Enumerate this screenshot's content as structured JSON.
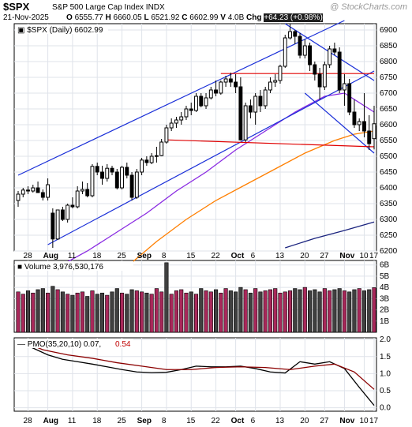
{
  "header": {
    "symbol": "$SPX",
    "name": "S&P 500 Large Cap Index  INDX",
    "brand": "@ StockCharts.com",
    "date": "21-Nov-2025",
    "ohlc": {
      "O": "6555.77",
      "H": "6660.05",
      "L": "6521.92",
      "C": "6602.99",
      "V": "4.0B",
      "Chg": "+64.23 (+0.98%)"
    }
  },
  "colors": {
    "up_candle": "#ffffff",
    "down_candle": "#000000",
    "channel_line": "#1a2fd8",
    "resistance_line": "#e00000",
    "ma_purple": "#8a2be2",
    "ma_orange": "#ff7f00",
    "ma_navy": "#1a237e",
    "vol_up": "#a8285a",
    "vol_down": "#404040",
    "pmo_line": "#000000",
    "pmo_signal": "#8b0000"
  },
  "chart_data": [
    {
      "type": "candlestick",
      "title": "$SPX (Daily) 6602.99",
      "x_ticks": [
        "28",
        "Aug",
        "11",
        "18",
        "25",
        "Sep",
        "8",
        "15",
        "22",
        "Oct",
        "6",
        "13",
        "20",
        "27",
        "Nov",
        "10",
        "17"
      ],
      "ylim": [
        6200,
        6920
      ],
      "y_ticks": [
        6200,
        6250,
        6300,
        6350,
        6400,
        6450,
        6500,
        6550,
        6600,
        6650,
        6700,
        6750,
        6800,
        6850,
        6900
      ],
      "candles": [
        [
          6360,
          6390,
          6340,
          6380
        ],
        [
          6380,
          6400,
          6370,
          6393
        ],
        [
          6393,
          6405,
          6380,
          6390
        ],
        [
          6390,
          6410,
          6385,
          6400
        ],
        [
          6400,
          6420,
          6390,
          6385
        ],
        [
          6385,
          6395,
          6360,
          6370
        ],
        [
          6370,
          6430,
          6360,
          6410
        ],
        [
          6320,
          6335,
          6210,
          6238
        ],
        [
          6238,
          6330,
          6235,
          6330
        ],
        [
          6330,
          6340,
          6295,
          6300
        ],
        [
          6300,
          6350,
          6290,
          6345
        ],
        [
          6345,
          6370,
          6335,
          6340
        ],
        [
          6340,
          6405,
          6335,
          6390
        ],
        [
          6390,
          6420,
          6380,
          6395
        ],
        [
          6395,
          6415,
          6370,
          6375
        ],
        [
          6375,
          6475,
          6370,
          6468
        ],
        [
          6468,
          6480,
          6440,
          6450
        ],
        [
          6450,
          6470,
          6410,
          6430
        ],
        [
          6430,
          6475,
          6420,
          6462
        ],
        [
          6462,
          6470,
          6440,
          6450
        ],
        [
          6450,
          6460,
          6395,
          6400
        ],
        [
          6400,
          6470,
          6395,
          6465
        ],
        [
          6465,
          6480,
          6430,
          6440
        ],
        [
          6440,
          6450,
          6360,
          6370
        ],
        [
          6370,
          6460,
          6365,
          6450
        ],
        [
          6450,
          6495,
          6440,
          6488
        ],
        [
          6488,
          6500,
          6470,
          6480
        ],
        [
          6480,
          6510,
          6475,
          6500
        ],
        [
          6500,
          6530,
          6480,
          6502
        ],
        [
          6502,
          6555,
          6500,
          6545
        ],
        [
          6545,
          6600,
          6540,
          6590
        ],
        [
          6590,
          6620,
          6580,
          6605
        ],
        [
          6605,
          6625,
          6590,
          6615
        ],
        [
          6615,
          6640,
          6600,
          6625
        ],
        [
          6625,
          6660,
          6615,
          6650
        ],
        [
          6650,
          6670,
          6630,
          6645
        ],
        [
          6645,
          6700,
          6640,
          6690
        ],
        [
          6690,
          6700,
          6655,
          6660
        ],
        [
          6660,
          6700,
          6650,
          6685
        ],
        [
          6685,
          6720,
          6680,
          6710
        ],
        [
          6710,
          6740,
          6690,
          6700
        ],
        [
          6700,
          6740,
          6695,
          6735
        ],
        [
          6735,
          6755,
          6720,
          6745
        ],
        [
          6745,
          6765,
          6720,
          6735
        ],
        [
          6735,
          6760,
          6700,
          6720
        ],
        [
          6720,
          6750,
          6550,
          6552
        ],
        [
          6552,
          6670,
          6545,
          6660
        ],
        [
          6660,
          6680,
          6620,
          6640
        ],
        [
          6640,
          6700,
          6600,
          6690
        ],
        [
          6690,
          6710,
          6640,
          6660
        ],
        [
          6660,
          6720,
          6650,
          6710
        ],
        [
          6710,
          6750,
          6700,
          6735
        ],
        [
          6735,
          6760,
          6720,
          6740
        ],
        [
          6740,
          6790,
          6730,
          6785
        ],
        [
          6785,
          6885,
          6780,
          6875
        ],
        [
          6875,
          6920,
          6870,
          6895
        ],
        [
          6895,
          6900,
          6855,
          6880
        ],
        [
          6880,
          6890,
          6810,
          6820
        ],
        [
          6820,
          6870,
          6810,
          6850
        ],
        [
          6850,
          6860,
          6770,
          6790
        ],
        [
          6790,
          6800,
          6740,
          6760
        ],
        [
          6760,
          6780,
          6680,
          6720
        ],
        [
          6720,
          6800,
          6710,
          6790
        ],
        [
          6790,
          6850,
          6780,
          6840
        ],
        [
          6840,
          6860,
          6820,
          6830
        ],
        [
          6830,
          6845,
          6700,
          6710
        ],
        [
          6710,
          6760,
          6660,
          6730
        ],
        [
          6730,
          6745,
          6630,
          6640
        ],
        [
          6640,
          6680,
          6590,
          6600
        ],
        [
          6600,
          6620,
          6580,
          6610
        ],
        [
          6610,
          6700,
          6560,
          6580
        ],
        [
          6580,
          6630,
          6520,
          6540
        ],
        [
          6555.77,
          6660.05,
          6521.92,
          6602.99
        ]
      ],
      "channels": [
        {
          "name": "upper-channel",
          "color": "#1a2fd8",
          "points": [
            [
              0,
              6440
            ],
            [
              66,
              6930
            ]
          ]
        },
        {
          "name": "lower-channel",
          "color": "#1a2fd8",
          "points": [
            [
              6,
              6220
            ],
            [
              72,
              6770
            ]
          ]
        },
        {
          "name": "down-channel-top",
          "color": "#1a2fd8",
          "points": [
            [
              54,
              6920
            ],
            [
              72,
              6740
            ]
          ]
        },
        {
          "name": "down-channel-bottom",
          "color": "#1a2fd8",
          "points": [
            [
              58,
              6700
            ],
            [
              72,
              6510
            ]
          ]
        },
        {
          "name": "resistance-top",
          "color": "#e00000",
          "points": [
            [
              41,
              6762
            ],
            [
              72,
              6762
            ]
          ]
        },
        {
          "name": "support-bottom",
          "color": "#e00000",
          "points": [
            [
              30,
              6552
            ],
            [
              72,
              6530
            ]
          ]
        }
      ],
      "ma_series": [
        {
          "name": "ma-purple",
          "color": "#8a2be2",
          "values": [
            [
              7,
              6140
            ],
            [
              14,
              6200
            ],
            [
              20,
              6260
            ],
            [
              26,
              6320
            ],
            [
              32,
              6390
            ],
            [
              38,
              6450
            ],
            [
              44,
              6520
            ],
            [
              50,
              6580
            ],
            [
              56,
              6640
            ],
            [
              62,
              6690
            ],
            [
              66,
              6700
            ],
            [
              70,
              6660
            ],
            [
              72,
              6640
            ]
          ]
        },
        {
          "name": "ma-orange",
          "color": "#ff7f00",
          "values": [
            [
              22,
              6150
            ],
            [
              28,
              6230
            ],
            [
              34,
              6300
            ],
            [
              40,
              6360
            ],
            [
              46,
              6410
            ],
            [
              52,
              6460
            ],
            [
              58,
              6510
            ],
            [
              64,
              6550
            ],
            [
              68,
              6570
            ],
            [
              72,
              6580
            ]
          ]
        },
        {
          "name": "ma-navy",
          "color": "#1a237e",
          "values": [
            [
              54,
              6210
            ],
            [
              60,
              6240
            ],
            [
              66,
              6265
            ],
            [
              72,
              6292
            ]
          ]
        }
      ]
    },
    {
      "type": "bar",
      "title": "Volume 3,976,530,176",
      "ylim": [
        0,
        6.4
      ],
      "y_tick_labels": [
        "1B",
        "2B",
        "3B",
        "4B",
        "5B",
        "6B"
      ],
      "y_tick_values": [
        1,
        2,
        3,
        4,
        5,
        6
      ],
      "values": [
        3.6,
        3.4,
        3.7,
        3.5,
        3.8,
        3.9,
        3.5,
        4.1,
        3.8,
        3.6,
        3.4,
        3.3,
        3.5,
        3.6,
        3.2,
        3.7,
        3.4,
        3.5,
        3.3,
        3.6,
        3.9,
        3.5,
        3.4,
        3.8,
        3.7,
        3.6,
        3.5,
        3.4,
        3.9,
        3.6,
        6.2,
        3.4,
        3.7,
        3.8,
        3.5,
        3.6,
        3.4,
        3.9,
        3.7,
        3.6,
        3.8,
        3.5,
        3.9,
        3.7,
        3.6,
        4.0,
        3.8,
        3.5,
        3.9,
        3.6,
        3.7,
        3.8,
        3.9,
        3.5,
        3.6,
        3.7,
        3.9,
        3.8,
        4.0,
        3.7,
        3.8,
        3.6,
        3.9,
        3.7,
        3.8,
        3.9,
        3.7,
        3.6,
        3.8,
        3.9,
        3.7,
        3.8,
        3.98
      ],
      "up": [
        1,
        1,
        0,
        1,
        0,
        0,
        1,
        0,
        1,
        0,
        1,
        0,
        1,
        1,
        0,
        1,
        0,
        0,
        1,
        0,
        0,
        1,
        0,
        0,
        1,
        1,
        0,
        1,
        1,
        1,
        0,
        1,
        1,
        1,
        1,
        0,
        1,
        0,
        1,
        1,
        0,
        1,
        1,
        0,
        0,
        0,
        1,
        0,
        1,
        0,
        1,
        1,
        1,
        1,
        1,
        1,
        0,
        0,
        1,
        0,
        0,
        0,
        1,
        1,
        0,
        0,
        1,
        0,
        0,
        1,
        0,
        0,
        1
      ]
    },
    {
      "type": "line",
      "title": "PMO(35,20,10) 0.07, 0.54",
      "ylim": [
        -0.1,
        2.05
      ],
      "y_ticks": [
        0.0,
        0.5,
        1.0,
        1.5,
        2.0
      ],
      "y_tick_labels": [
        "0.0",
        "0.5",
        "1.0",
        "1.5",
        "2.0"
      ],
      "series": [
        {
          "name": "PMO",
          "values": [
            [
              0,
              1.95
            ],
            [
              3,
              1.75
            ],
            [
              6,
              1.55
            ],
            [
              9,
              1.42
            ],
            [
              12,
              1.35
            ],
            [
              15,
              1.28
            ],
            [
              18,
              1.2
            ],
            [
              21,
              1.12
            ],
            [
              24,
              1.05
            ],
            [
              27,
              1.03
            ],
            [
              30,
              1.04
            ],
            [
              33,
              1.12
            ],
            [
              36,
              1.22
            ],
            [
              39,
              1.2
            ],
            [
              42,
              1.2
            ],
            [
              45,
              1.22
            ],
            [
              48,
              1.15
            ],
            [
              51,
              1.05
            ],
            [
              54,
              1.02
            ],
            [
              57,
              1.35
            ],
            [
              60,
              1.28
            ],
            [
              63,
              1.35
            ],
            [
              66,
              1.15
            ],
            [
              69,
              0.6
            ],
            [
              72,
              0.07
            ]
          ]
        },
        {
          "name": "Signal",
          "values": [
            [
              0,
              2.0
            ],
            [
              5,
              1.7
            ],
            [
              10,
              1.55
            ],
            [
              15,
              1.45
            ],
            [
              20,
              1.32
            ],
            [
              25,
              1.22
            ],
            [
              30,
              1.12
            ],
            [
              35,
              1.12
            ],
            [
              40,
              1.18
            ],
            [
              45,
              1.2
            ],
            [
              50,
              1.18
            ],
            [
              55,
              1.12
            ],
            [
              60,
              1.22
            ],
            [
              64,
              1.28
            ],
            [
              68,
              1.05
            ],
            [
              72,
              0.54
            ]
          ]
        }
      ]
    }
  ],
  "panes": {
    "volume_label": "Volume 3,976,530,176",
    "pmo_label_black": "PMO(35,20,10) 0.07,",
    "pmo_label_red": "0.54"
  }
}
